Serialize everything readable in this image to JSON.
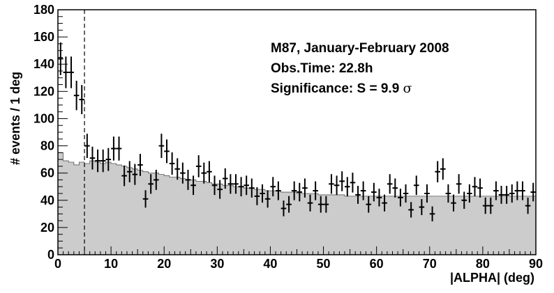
{
  "chart_data": {
    "type": "bar",
    "title": "",
    "xlabel": "|ALPHA| (deg)",
    "ylabel": "# events / 1 deg",
    "xlim": [
      0,
      90
    ],
    "ylim": [
      0,
      180
    ],
    "x_ticks": [
      "0",
      "10",
      "20",
      "30",
      "40",
      "50",
      "60",
      "70",
      "80",
      "90"
    ],
    "y_ticks": [
      "0",
      "20",
      "40",
      "60",
      "80",
      "100",
      "120",
      "140",
      "160",
      "180"
    ],
    "grid": false,
    "annotations": {
      "line1": "M87, January-February 2008",
      "line2": "Obs.Time: 22.8h",
      "line3_prefix": "Significance: S = 9.9 ",
      "line3_symbol": "σ"
    },
    "cut_line_x": 5,
    "bin_width": 1,
    "series": [
      {
        "style": "filled-histogram",
        "color": "#cccccc",
        "values": [
          75,
          69,
          68,
          66,
          68,
          67,
          69,
          68,
          67,
          68,
          67,
          66,
          65,
          64,
          63,
          62,
          61,
          60,
          60,
          59,
          58,
          57,
          57,
          56,
          55,
          55,
          54,
          54,
          53,
          52,
          52,
          51,
          51,
          50,
          50,
          49,
          49,
          48,
          48,
          47,
          47,
          47,
          46,
          46,
          46,
          45,
          45,
          45,
          45,
          44,
          44,
          44,
          44,
          44,
          43,
          43,
          43,
          43,
          43,
          43,
          43,
          43,
          43,
          43,
          43,
          43,
          43,
          43,
          43,
          43,
          43,
          43,
          43,
          43,
          43,
          43,
          43,
          43,
          43,
          43,
          43,
          43,
          43,
          43,
          43,
          43,
          43,
          43,
          43,
          43
        ]
      },
      {
        "style": "error-bars",
        "color": "#000000",
        "values": [
          144,
          134,
          134,
          117,
          114,
          80,
          71,
          69,
          69,
          70,
          78,
          78,
          58,
          61,
          59,
          66,
          41,
          52,
          55,
          80,
          76,
          67,
          63,
          60,
          55,
          51,
          65,
          60,
          61,
          51,
          48,
          56,
          52,
          52,
          50,
          51,
          49,
          43,
          45,
          41,
          50,
          47,
          34,
          37,
          47,
          46,
          49,
          38,
          47,
          37,
          37,
          52,
          51,
          54,
          50,
          53,
          44,
          47,
          37,
          46,
          42,
          38,
          52,
          49,
          42,
          45,
          33,
          51,
          35,
          45,
          30,
          61,
          63,
          45,
          38,
          52,
          40,
          45,
          50,
          49,
          36,
          36,
          47,
          44,
          44,
          45,
          47,
          47,
          36,
          46
        ],
        "errors": [
          12,
          11.6,
          11.6,
          10.8,
          10.7,
          8.9,
          8.4,
          8.3,
          8.3,
          8.4,
          8.8,
          8.8,
          7.6,
          7.8,
          7.7,
          8.1,
          6.4,
          7.2,
          7.4,
          8.9,
          8.7,
          8.2,
          7.9,
          7.7,
          7.4,
          7.1,
          8.1,
          7.7,
          7.8,
          7.1,
          6.9,
          7.5,
          7.2,
          7.2,
          7.1,
          7.1,
          7,
          6.6,
          6.7,
          6.4,
          7.1,
          6.9,
          5.8,
          6.1,
          6.9,
          6.8,
          7,
          6.2,
          6.9,
          6.1,
          6.1,
          7.2,
          7.1,
          7.3,
          7.1,
          7.3,
          6.6,
          6.9,
          6.1,
          6.8,
          6.5,
          6.2,
          7.2,
          7,
          6.5,
          6.7,
          5.7,
          7.1,
          5.9,
          6.7,
          5.5,
          7.8,
          7.9,
          6.7,
          6.2,
          7.2,
          6.3,
          6.7,
          7.1,
          7,
          6,
          6,
          6.9,
          6.6,
          6.6,
          6.7,
          6.9,
          6.9,
          6,
          6.8
        ]
      }
    ]
  }
}
